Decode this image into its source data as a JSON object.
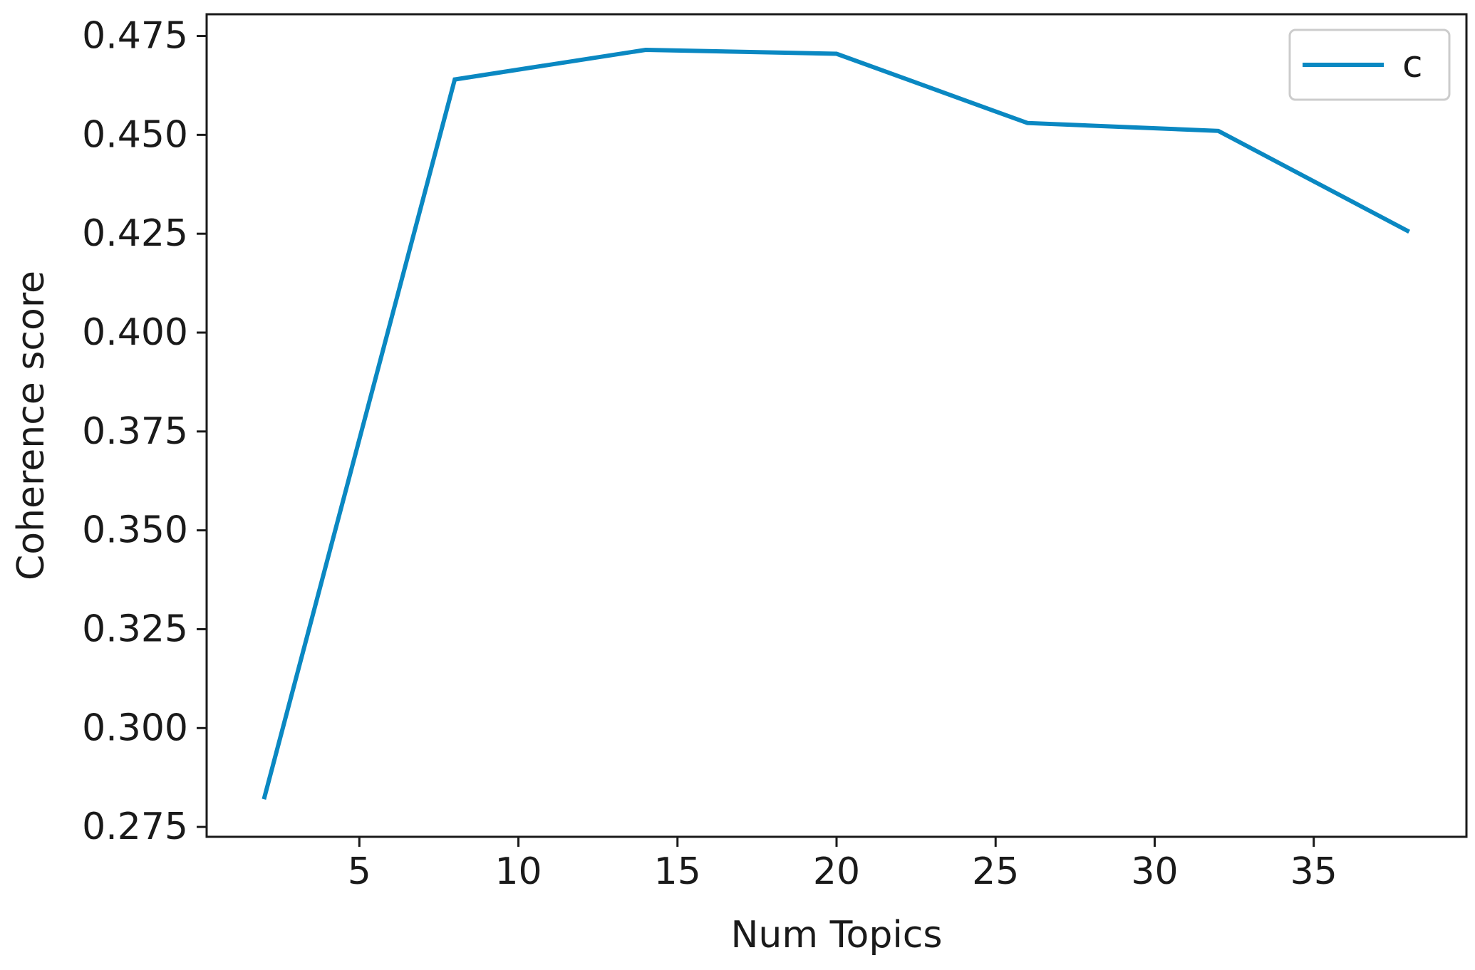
{
  "chart_data": {
    "type": "line",
    "title": "",
    "xlabel": "Num Topics",
    "ylabel": "Coherence score",
    "xlim": [
      0.2,
      39.8
    ],
    "ylim": [
      0.2725,
      0.4805
    ],
    "x_ticks": [
      5,
      10,
      15,
      20,
      25,
      30,
      35
    ],
    "x_tick_labels": [
      "5",
      "10",
      "15",
      "20",
      "25",
      "30",
      "35"
    ],
    "y_ticks": [
      0.275,
      0.3,
      0.325,
      0.35,
      0.375,
      0.4,
      0.425,
      0.45,
      0.475
    ],
    "y_tick_labels": [
      "0.275",
      "0.300",
      "0.325",
      "0.350",
      "0.375",
      "0.400",
      "0.425",
      "0.450",
      "0.475"
    ],
    "grid": false,
    "legend_position": "top-right",
    "series": [
      {
        "name": "c",
        "color": "#0a88c2",
        "x": [
          2,
          8,
          14,
          20,
          26,
          32,
          38
        ],
        "values": [
          0.282,
          0.464,
          0.4715,
          0.4705,
          0.453,
          0.451,
          0.4255
        ]
      }
    ]
  }
}
